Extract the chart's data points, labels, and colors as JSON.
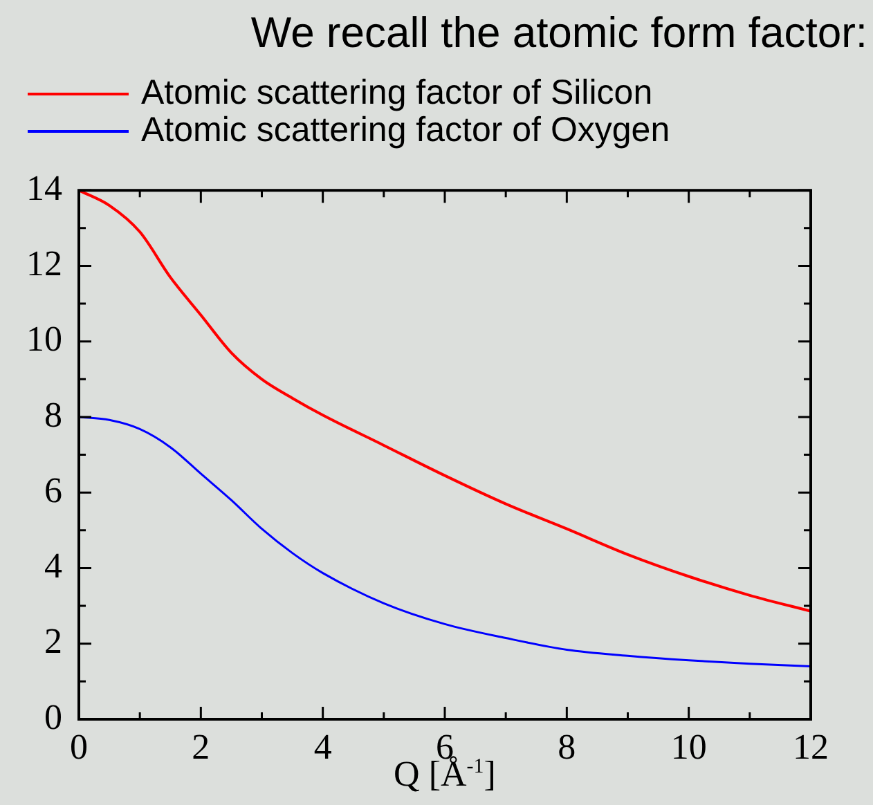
{
  "chart_data": {
    "type": "line",
    "title": "We recall the atomic form factor:",
    "xlabel": "Q [Å$^{-1}$]",
    "legend": "top left",
    "x": [
      0,
      0.5,
      1,
      1.5,
      2,
      2.5,
      3,
      3.5,
      4,
      5,
      6,
      7,
      8,
      9,
      10,
      11,
      12
    ],
    "xlim": [
      0,
      12
    ],
    "ylim": [
      0,
      14
    ],
    "xticks": [
      0,
      {
        "value": 1,
        "label": null
      },
      2,
      {
        "value": 3,
        "label": null
      },
      4,
      {
        "value": 5,
        "label": null
      },
      6,
      {
        "value": 7,
        "label": null
      },
      8,
      {
        "value": 9,
        "label": null
      },
      10,
      {
        "value": 11,
        "label": null
      },
      12
    ],
    "yticks": [
      0,
      {
        "value": 1,
        "label": null
      },
      2,
      {
        "value": 3,
        "label": null
      },
      4,
      {
        "value": 5,
        "label": null
      },
      6,
      {
        "value": 7,
        "label": null
      },
      8,
      {
        "value": 9,
        "label": null
      },
      10,
      {
        "value": 11,
        "label": null
      },
      12,
      {
        "value": 13,
        "label": null
      },
      14
    ],
    "marker": "none",
    "line_style": "solid",
    "series": [
      {
        "name": "Atomic scattering factor of Silicon",
        "color": "#ff0000",
        "values": [
          14,
          13.6,
          12.9,
          11.7,
          10.7,
          9.7,
          9.0,
          8.5,
          8.05,
          7.25,
          6.45,
          5.7,
          5.04,
          4.36,
          3.78,
          3.28,
          2.86
        ]
      },
      {
        "name": "Atomic scattering factor of Oxygen",
        "color": "#0000ff",
        "values": [
          8,
          7.92,
          7.68,
          7.2,
          6.5,
          5.8,
          5.04,
          4.4,
          3.87,
          3.07,
          2.52,
          2.15,
          1.84,
          1.68,
          1.56,
          1.47,
          1.4
        ]
      }
    ]
  }
}
